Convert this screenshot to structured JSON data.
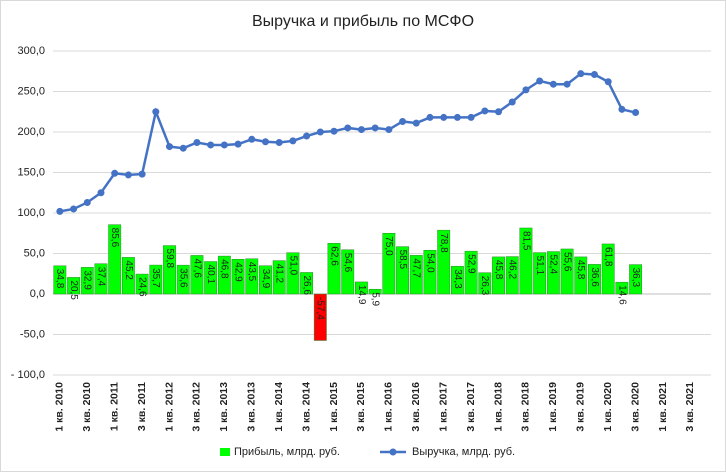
{
  "chart_data": {
    "type": "combo",
    "title": "Выручка и прибыль по МСФО",
    "categories": [
      "1 кв. 2010",
      null,
      "3 кв. 2010",
      null,
      "1 кв. 2011",
      null,
      "3 кв. 2011",
      null,
      "1 кв. 2012",
      null,
      "3 кв. 2012",
      null,
      "1 кв. 2013",
      null,
      "3 кв. 2013",
      null,
      "1 кв. 2014",
      null,
      "3 кв. 2014",
      null,
      "1 кв. 2015",
      null,
      "3 кв. 2015",
      null,
      "1 кв. 2016",
      null,
      "3 кв. 2016",
      null,
      "1 кв. 2017",
      null,
      "3 кв. 2017",
      null,
      "1 кв. 2018",
      null,
      "3 кв. 2018",
      null,
      "1 кв. 2019",
      null,
      "3 кв. 2019",
      null,
      "1 кв. 2020",
      null,
      "3 кв. 2020",
      null,
      "1 кв. 2021",
      null,
      "3 кв. 2021",
      null
    ],
    "series": [
      {
        "name": "Прибыль, млрд. руб.",
        "type": "bar",
        "color": "#00ff00",
        "negative_color": "#ff0000",
        "values": [
          34.8,
          20.5,
          32.9,
          37.4,
          85.6,
          45.2,
          24.6,
          35.7,
          59.8,
          35.6,
          47.6,
          40.1,
          46.8,
          42.9,
          43.5,
          34.9,
          41.2,
          51.0,
          26.6,
          -57.4,
          62.6,
          54.6,
          14.9,
          5.9,
          75.0,
          58.5,
          47.7,
          54.0,
          78.8,
          34.3,
          52.9,
          26.3,
          45.8,
          46.2,
          81.5,
          51.1,
          52.4,
          55.6,
          45.8,
          36.6,
          61.8,
          14.6,
          36.3,
          null,
          null,
          null,
          null,
          null
        ],
        "value_labels": [
          "34,8",
          "20,5",
          "32,9",
          "37,4",
          "85,6",
          "45,2",
          "24,6",
          "35,7",
          "59,8",
          "35,6",
          "47,6",
          "40,1",
          "46,8",
          "42,9",
          "43,5",
          "34,9",
          "41,2",
          "51,0",
          "26,6",
          "-57,4",
          "62,6",
          "54,6",
          "14,9",
          "5,9",
          "75,0",
          "58,5",
          "47,7",
          "54,0",
          "78,8",
          "34,3",
          "52,9",
          "26,3",
          "45,8",
          "46,2",
          "81,5",
          "51,1",
          "52,4",
          "55,6",
          "45,8",
          "36,6",
          "61,8",
          "14,6",
          "36,3",
          null,
          null,
          null,
          null,
          null
        ]
      },
      {
        "name": "Выручка, млрд. руб.",
        "type": "line",
        "color": "#4472c4",
        "values": [
          102,
          105,
          113,
          125,
          149,
          147,
          148,
          225,
          182,
          180,
          187,
          184,
          184,
          185,
          191,
          188,
          187,
          189,
          195,
          200,
          201,
          205,
          203,
          205,
          203,
          213,
          211,
          218,
          218,
          218,
          218,
          226,
          225,
          237,
          252,
          263,
          259,
          259,
          272,
          271,
          262,
          228,
          224,
          null,
          null,
          null,
          null,
          null
        ]
      }
    ],
    "ylim": [
      -100,
      300
    ],
    "yticks": [
      {
        "value": -100,
        "label": "- 100,0"
      },
      {
        "value": -50,
        "label": "-50,0"
      },
      {
        "value": 0,
        "label": "0,0"
      },
      {
        "value": 50,
        "label": "50,0"
      },
      {
        "value": 100,
        "label": "100,0"
      },
      {
        "value": 150,
        "label": "150,0"
      },
      {
        "value": 200,
        "label": "200,0"
      },
      {
        "value": 250,
        "label": "250,0"
      },
      {
        "value": 300,
        "label": "300,0"
      }
    ],
    "grid": true,
    "legend": "bottom"
  }
}
